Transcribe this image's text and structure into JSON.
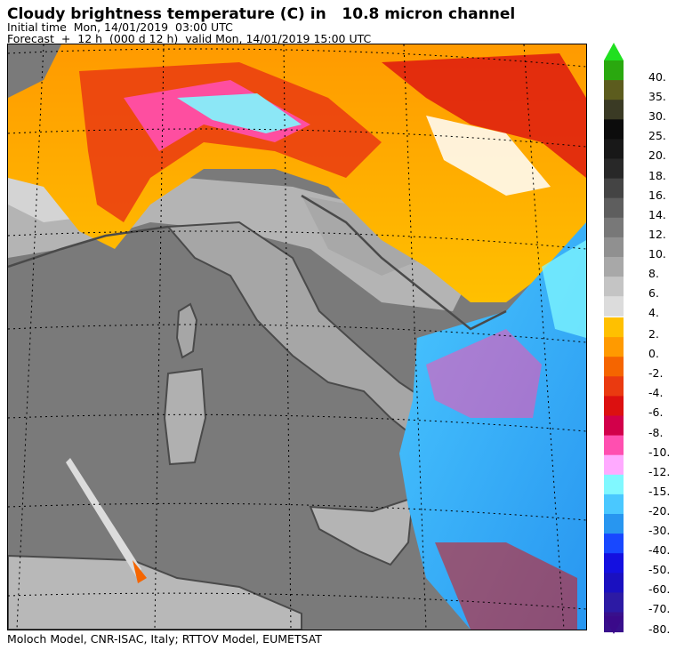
{
  "header": {
    "title": "Cloudy brightness temperature (C) in   10.8 micron channel",
    "initial_time": "Initial time  Mon, 14/01/2019  03:00 UTC",
    "forecast": "Forecast  +  12 h  (000 d 12 h)  valid Mon, 14/01/2019 15:00 UTC"
  },
  "footer": {
    "credit": "Moloch Model, CNR-ISAC, Italy; RTTOV Model, EUMETSAT"
  },
  "legend": {
    "upper": [
      {
        "label": "40.",
        "color": "#2aa80f"
      },
      {
        "label": "35.",
        "color": "#5c5c1e"
      },
      {
        "label": "30.",
        "color": "#3a3a24"
      },
      {
        "label": "25.",
        "color": "#0c0c0c"
      },
      {
        "label": "20.",
        "color": "#181818"
      },
      {
        "label": "18.",
        "color": "#282828"
      },
      {
        "label": "16.",
        "color": "#444444"
      },
      {
        "label": "14.",
        "color": "#5e5e5e"
      },
      {
        "label": "12.",
        "color": "#787878"
      },
      {
        "label": "10.",
        "color": "#909090"
      },
      {
        "label": "8.",
        "color": "#a8a8a8"
      },
      {
        "label": "6.",
        "color": "#c4c4c4"
      },
      {
        "label": "4.",
        "color": "#dcdcdc"
      }
    ],
    "lower": [
      {
        "label": "2.",
        "color": "#ffc000"
      },
      {
        "label": "0.",
        "color": "#ff9a00"
      },
      {
        "label": "-2.",
        "color": "#f56500"
      },
      {
        "label": "-4.",
        "color": "#ea3a10"
      },
      {
        "label": "-6.",
        "color": "#dc1010"
      },
      {
        "label": "-8.",
        "color": "#d2004a"
      },
      {
        "label": "-10.",
        "color": "#ff4fb0"
      },
      {
        "label": "-12.",
        "color": "#ffaaff"
      },
      {
        "label": "-15.",
        "color": "#80f8ff"
      },
      {
        "label": "-20.",
        "color": "#4ac8ff"
      },
      {
        "label": "-30.",
        "color": "#2896f0"
      },
      {
        "label": "-40.",
        "color": "#1848ff"
      },
      {
        "label": "-50.",
        "color": "#1410e0"
      },
      {
        "label": "-60.",
        "color": "#1a10c0"
      },
      {
        "label": "-70.",
        "color": "#2c1aa4"
      },
      {
        "label": "-80.",
        "color": "#38108c"
      }
    ],
    "top_arrow_color": "#20e020",
    "bottom_arrow_color": "#3a0a8a"
  },
  "map": {
    "land_color": "#9c9c9c",
    "sea_color": "#7a7a7a",
    "coast_color": "#4a4a4a"
  }
}
